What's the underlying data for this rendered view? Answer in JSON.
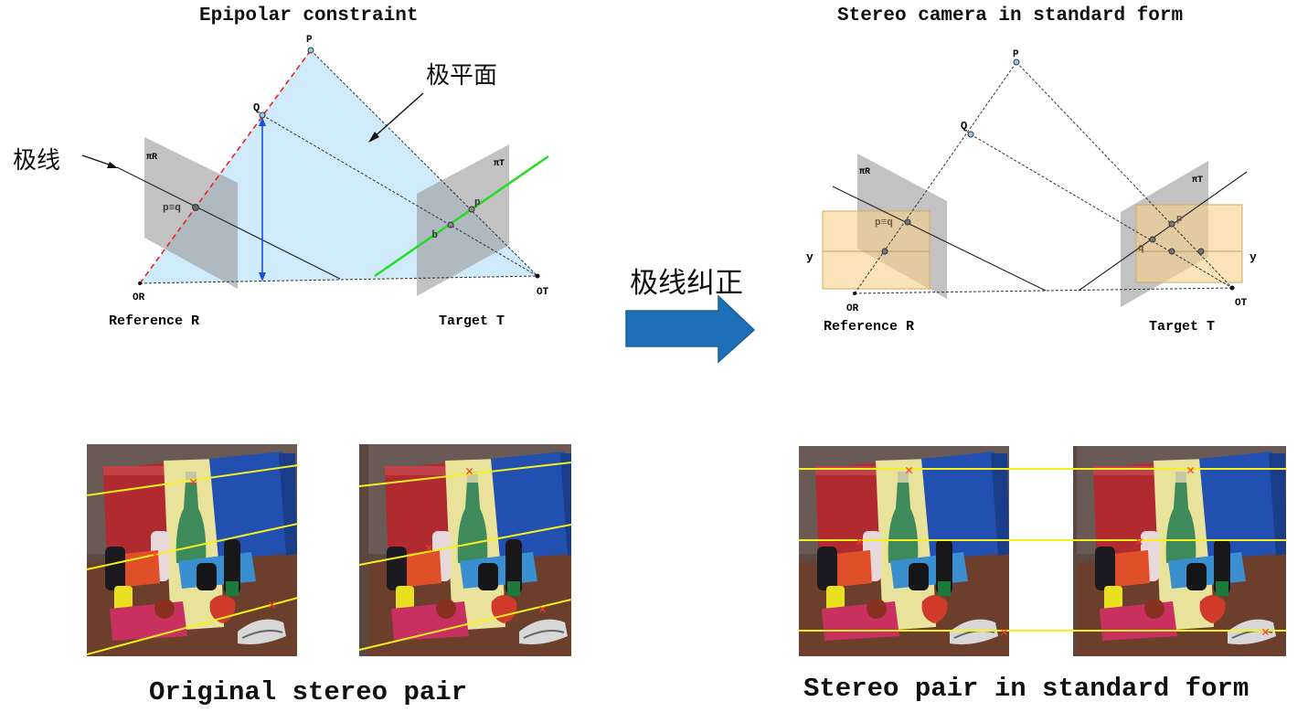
{
  "left_diagram": {
    "title": "Epipolar constraint",
    "point_P": "P",
    "point_Q": "Q",
    "plane_R": "πR",
    "plane_T": "πT",
    "pq_label": "p≡q",
    "p_label": "p",
    "q_label": "q",
    "origin_R": "OR",
    "origin_T": "OT",
    "reference_label": "Reference R",
    "target_label": "Target T",
    "epipolar_plane_label": "极平面",
    "epipolar_line_label": "极线"
  },
  "arrow": {
    "label": "极线纠正",
    "color": "#1f6fb8"
  },
  "right_diagram": {
    "title": "Stereo camera in standard form",
    "point_P": "P",
    "point_Q": "Q",
    "plane_R": "πR",
    "plane_T": "πT",
    "pq_label": "p≡q",
    "p_label": "p",
    "q_label": "q",
    "y_left": "y",
    "y_right": "y",
    "origin_R": "OR",
    "origin_T": "OT",
    "reference_label": "Reference R",
    "target_label": "Target T"
  },
  "bottom_left": {
    "caption": "Original stereo pair"
  },
  "bottom_right": {
    "caption": "Stereo pair in standard form"
  },
  "colors": {
    "epipolar_plane": "#cfeafa",
    "image_plane": "#b4b4b4",
    "rectified_plane": "#f7cf8a",
    "green_line": "#22dd22",
    "red_dashed": "#ee2222",
    "blue_arrow": "#1b4fe0",
    "yellow_line": "#f5f020",
    "marker": "#ff3b1a"
  }
}
